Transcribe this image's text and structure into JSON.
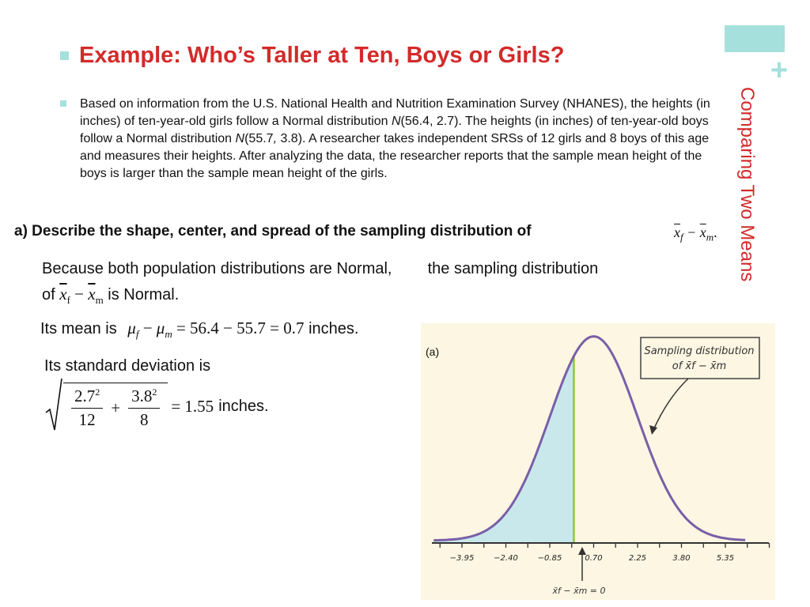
{
  "side": {
    "title": "Comparing Two Means",
    "plus": "+"
  },
  "title": "Example: Who’s Taller at Ten, Boys or Girls?",
  "paragraph": {
    "p1": "Based on information from the U.S. National Health and Nutrition Examination Survey (NHANES), the heights (in inches) of ten-year-old girls follow a Normal distribution ",
    "n1": "N",
    "p2": "(56.4, 2.7). The heights (in inches) of ten-year-old boys follow a Normal distribution ",
    "n2": "N",
    "p3": "(55.7",
    "comma": ",",
    "p4": " 3.8). A researcher takes independent SRSs of 12 girls and 8 boys of this age and measures their heights.  After analyzing the data, the researcher reports that the sample mean height of the boys is larger than the sample mean height of the girls."
  },
  "question": {
    "text": "a) Describe the shape,  center, and spread of the sampling distribution of",
    "x": "x",
    "sub_f": "f",
    "minus": "−",
    "sub_m": "m",
    "period": "."
  },
  "shape": {
    "line1a": "Because both population distributions are Normal,",
    "line1b": "the sampling distribution",
    "of": "of",
    "x": "x",
    "sub_f": "f",
    "minus": "−",
    "sub_m": "m",
    "is_normal": "is Normal."
  },
  "mean": {
    "label": "Its mean is",
    "mu": "μ",
    "sub_f": "f",
    "minus": "−",
    "sub_m": "m",
    "rhs": "= 56.4 − 55.7 = 0.7",
    "unit": "inches."
  },
  "sd": {
    "label": "Its standard deviation is",
    "num1": "2.7",
    "den1": "12",
    "num2": "3.8",
    "den2": "8",
    "exp": "2",
    "plus": "+",
    "result": "= 1.55",
    "unit": "inches."
  },
  "figure": {
    "panel_label": "(a)",
    "annotation_line1": "Sampling distribution",
    "annotation_line2": "of x̄f − x̄m",
    "zero_label": "x̄f − x̄m = 0",
    "x_ticks": [
      "−3.95",
      "−2.40",
      "−0.85",
      "0.70",
      "2.25",
      "3.80",
      "5.35"
    ],
    "colors": {
      "shade": "#c9e8ec",
      "curve": "#7a5fa8",
      "zero_line": "#8cc63f",
      "background": "#fdf6e2",
      "title": "#d32a2a",
      "accent": "#a6e0dc"
    },
    "chart_data": {
      "type": "normal_curve",
      "mean": 0.7,
      "sd": 1.55,
      "shaded_region": "left of 0",
      "x_ticks": [
        -3.95,
        -2.4,
        -0.85,
        0.7,
        2.25,
        3.8,
        5.35
      ]
    }
  }
}
